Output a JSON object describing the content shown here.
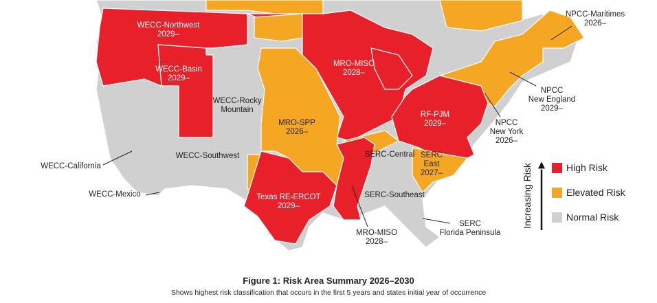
{
  "map": {
    "regions": [
      {
        "lines": [
          "WECC-Northwest",
          "2029–"
        ]
      },
      {
        "lines": [
          "WECC-Basin",
          "2029–"
        ]
      },
      {
        "lines": [
          "WECC-Rocky",
          "Mountain"
        ]
      },
      {
        "lines": [
          "MRO-MISO",
          "2028–"
        ]
      },
      {
        "lines": [
          "MRO-SPP",
          "2026–"
        ]
      },
      {
        "lines": [
          "RF-PJM",
          "2029–"
        ]
      },
      {
        "lines": [
          "SERC",
          "East",
          "2027–"
        ]
      },
      {
        "lines": [
          "SERC-Central"
        ]
      },
      {
        "lines": [
          "SERC-Southeast"
        ]
      },
      {
        "lines": [
          "Texas RE-ERCOT",
          "2029–"
        ]
      },
      {
        "lines": [
          "WECC-Southwest"
        ]
      },
      {
        "lines": [
          "WECC-California"
        ]
      },
      {
        "lines": [
          "WECC-Mexico"
        ]
      },
      {
        "lines": [
          "MRO-MISO",
          "2028–"
        ]
      },
      {
        "lines": [
          "SERC",
          "Florida Peninsula"
        ]
      },
      {
        "lines": [
          "NPCC",
          "New York",
          "2026–"
        ]
      },
      {
        "lines": [
          "NPCC",
          "New England",
          "2029–"
        ]
      },
      {
        "lines": [
          "NPCC-Maritimes",
          "2026–"
        ]
      }
    ]
  },
  "legend": {
    "axis_label": "Increasing Risk",
    "items": [
      {
        "label": "High Risk",
        "color": "#e8202a"
      },
      {
        "label": "Elevated Risk",
        "color": "#f5a623"
      },
      {
        "label": "Normal Risk",
        "color": "#d0d0d0"
      }
    ]
  },
  "figure": {
    "title": "Figure 1: Risk Area Summary 2026–2030",
    "caption": "Shows highest risk classification that occurs in the first 5 years and states initial year of occurrence"
  }
}
